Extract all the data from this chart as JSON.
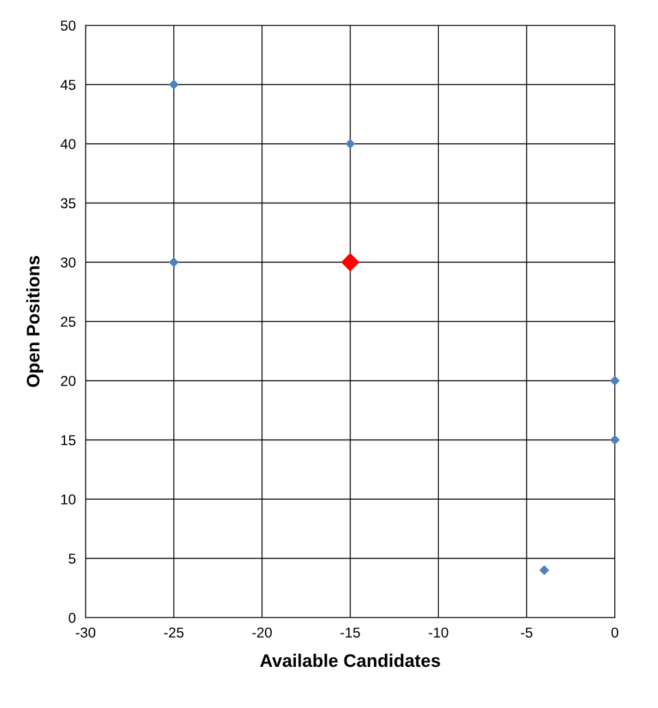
{
  "chart_data": {
    "type": "scatter",
    "xlabel": "Available Candidates",
    "ylabel": "Open Positions",
    "series": [
      {
        "color": "#4f81bd",
        "x": [
          -25,
          -15,
          -25,
          0,
          0,
          -4
        ],
        "values": [
          45,
          40,
          30,
          20,
          15,
          4
        ]
      },
      {
        "color": "#ff0000",
        "x": [
          -15
        ],
        "values": [
          30
        ]
      }
    ],
    "xlim": [
      -30,
      0
    ],
    "xticks": [
      -30,
      -25,
      -20,
      -15,
      -10,
      -5,
      0
    ],
    "ylim": [
      0,
      50
    ],
    "yticks": [
      0,
      5,
      10,
      15,
      20,
      25,
      30,
      35,
      40,
      45,
      50
    ],
    "grid": true,
    "marker": "diamond"
  }
}
